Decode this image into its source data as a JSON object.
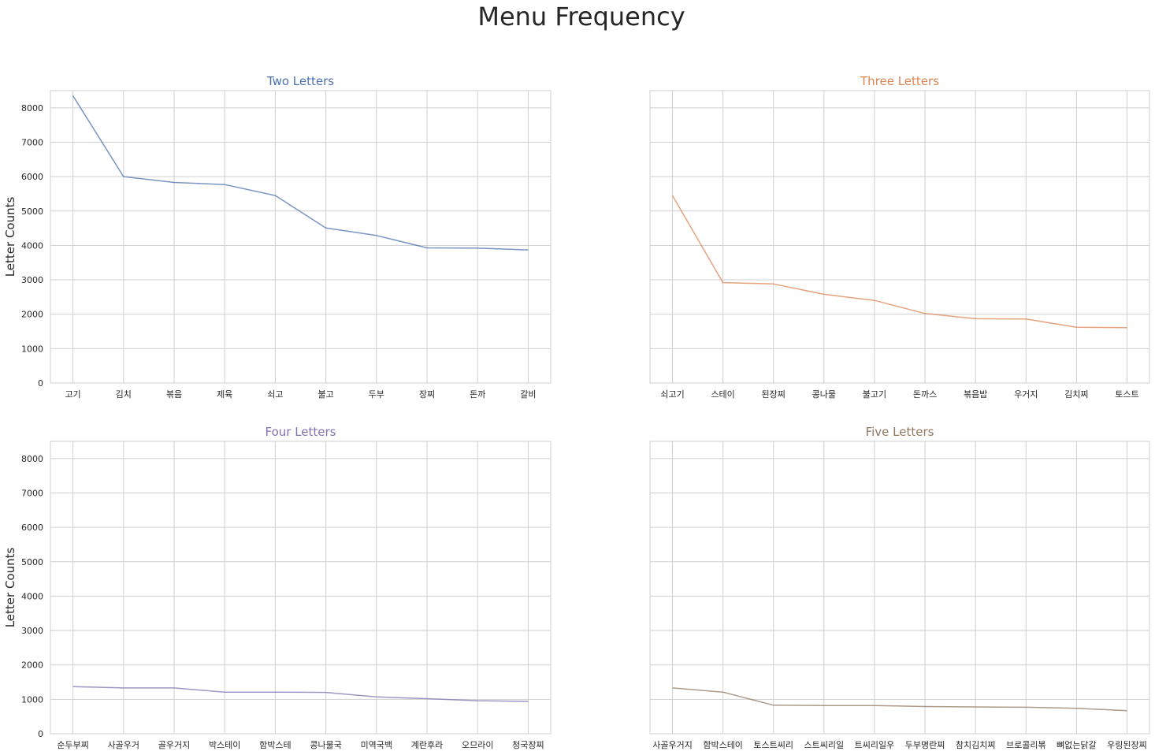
{
  "figure": {
    "title": "Menu Frequency"
  },
  "chart_data": [
    {
      "type": "line",
      "title": "Two Letters",
      "ylabel": "Letter Counts",
      "color": "#4C72B0",
      "ylim": [
        0,
        8500
      ],
      "yticks": [
        0,
        1000,
        2000,
        3000,
        4000,
        5000,
        6000,
        7000,
        8000
      ],
      "grid": true,
      "categories": [
        "고기",
        "김치",
        "볶음",
        "제육",
        "쇠고",
        "불고",
        "두부",
        "장찌",
        "돈까",
        "갈비"
      ],
      "values": [
        8350,
        6000,
        5830,
        5770,
        5450,
        4510,
        4290,
        3930,
        3920,
        3870
      ]
    },
    {
      "type": "line",
      "title": "Three Letters",
      "ylabel": "",
      "color": "#DD8452",
      "ylim": [
        0,
        8500
      ],
      "yticks": [
        0,
        1000,
        2000,
        3000,
        4000,
        5000,
        6000,
        7000,
        8000
      ],
      "grid": true,
      "categories": [
        "쇠고기",
        "스테이",
        "된장찌",
        "콩나물",
        "불고기",
        "돈까스",
        "볶음밥",
        "우거지",
        "김치찌",
        "토스트"
      ],
      "values": [
        5450,
        2920,
        2880,
        2580,
        2400,
        2020,
        1870,
        1860,
        1620,
        1610
      ]
    },
    {
      "type": "line",
      "title": "Four Letters",
      "ylabel": "Letter Counts",
      "color": "#8172B3",
      "ylim": [
        0,
        8500
      ],
      "yticks": [
        0,
        1000,
        2000,
        3000,
        4000,
        5000,
        6000,
        7000,
        8000
      ],
      "grid": true,
      "categories": [
        "순두부찌",
        "사골우거",
        "골우거지",
        "박스테이",
        "함박스테",
        "콩나물국",
        "미역국백",
        "계란후라",
        "오므라이",
        "청국장찌"
      ],
      "values": [
        1370,
        1330,
        1330,
        1210,
        1210,
        1200,
        1070,
        1020,
        960,
        940
      ]
    },
    {
      "type": "line",
      "title": "Five Letters",
      "ylabel": "",
      "color": "#937860",
      "ylim": [
        0,
        8500
      ],
      "yticks": [
        0,
        1000,
        2000,
        3000,
        4000,
        5000,
        6000,
        7000,
        8000
      ],
      "grid": true,
      "categories": [
        "사골우거지",
        "함박스테이",
        "토스트씨리",
        "스트씨리일",
        "트씨리일우",
        "두부명란찌",
        "참치김치찌",
        "브로콜리볶",
        "뼈없는닭갈",
        "우링된장찌"
      ],
      "values": [
        1330,
        1210,
        830,
        820,
        820,
        790,
        780,
        770,
        740,
        670
      ]
    }
  ]
}
